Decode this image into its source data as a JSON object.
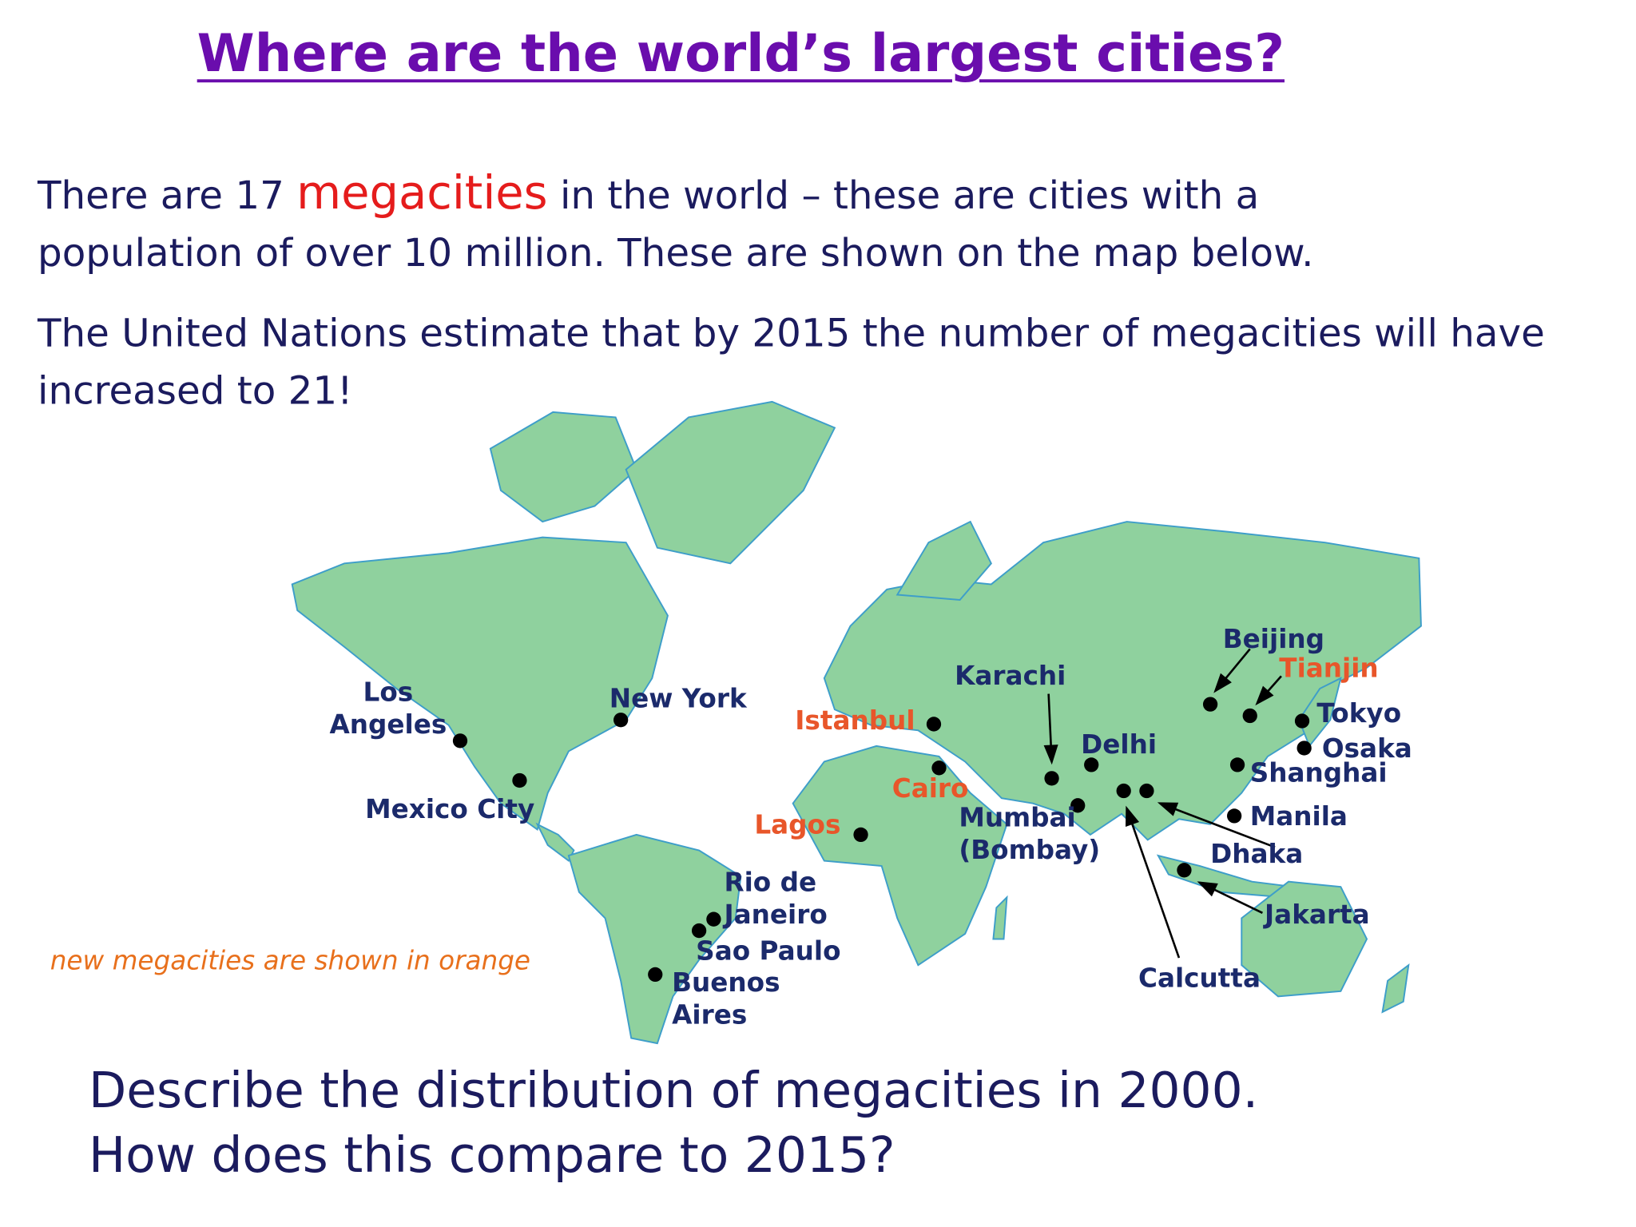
{
  "title": "Where are the world’s largest cities?",
  "intro": {
    "before": "There are 17 ",
    "highlight": "megacities",
    "after": " in the world – these are cities with a population of over 10 million. These are shown on the map below."
  },
  "estimate": "The United Nations estimate that by 2015 the number of megacities will have increased to 21!",
  "map": {
    "label_color": "#1b2a6b",
    "new_color": "#e8562a",
    "dot_color": "#000000",
    "cities": [
      {
        "name": "Los Angeles",
        "new": false
      },
      {
        "name": "New York",
        "new": false
      },
      {
        "name": "Mexico City",
        "new": false
      },
      {
        "name": "Rio de Janeiro",
        "new": false
      },
      {
        "name": "Sao Paulo",
        "new": false
      },
      {
        "name": "Buenos Aires",
        "new": false
      },
      {
        "name": "Lagos",
        "new": true
      },
      {
        "name": "Cairo",
        "new": true
      },
      {
        "name": "Istanbul",
        "new": true
      },
      {
        "name": "Karachi",
        "new": false
      },
      {
        "name": "Delhi",
        "new": false
      },
      {
        "name": "Mumbai (Bombay)",
        "new": false
      },
      {
        "name": "Calcutta",
        "new": false
      },
      {
        "name": "Dhaka",
        "new": false
      },
      {
        "name": "Jakarta",
        "new": false
      },
      {
        "name": "Beijing",
        "new": false
      },
      {
        "name": "Tianjin",
        "new": true
      },
      {
        "name": "Tokyo",
        "new": false
      },
      {
        "name": "Osaka",
        "new": false
      },
      {
        "name": "Shanghai",
        "new": false
      },
      {
        "name": "Manila",
        "new": false
      }
    ]
  },
  "note": "new megacities are shown in orange",
  "question": [
    "Describe the distribution of megacities in 2000.",
    "How does this compare to 2015?"
  ]
}
